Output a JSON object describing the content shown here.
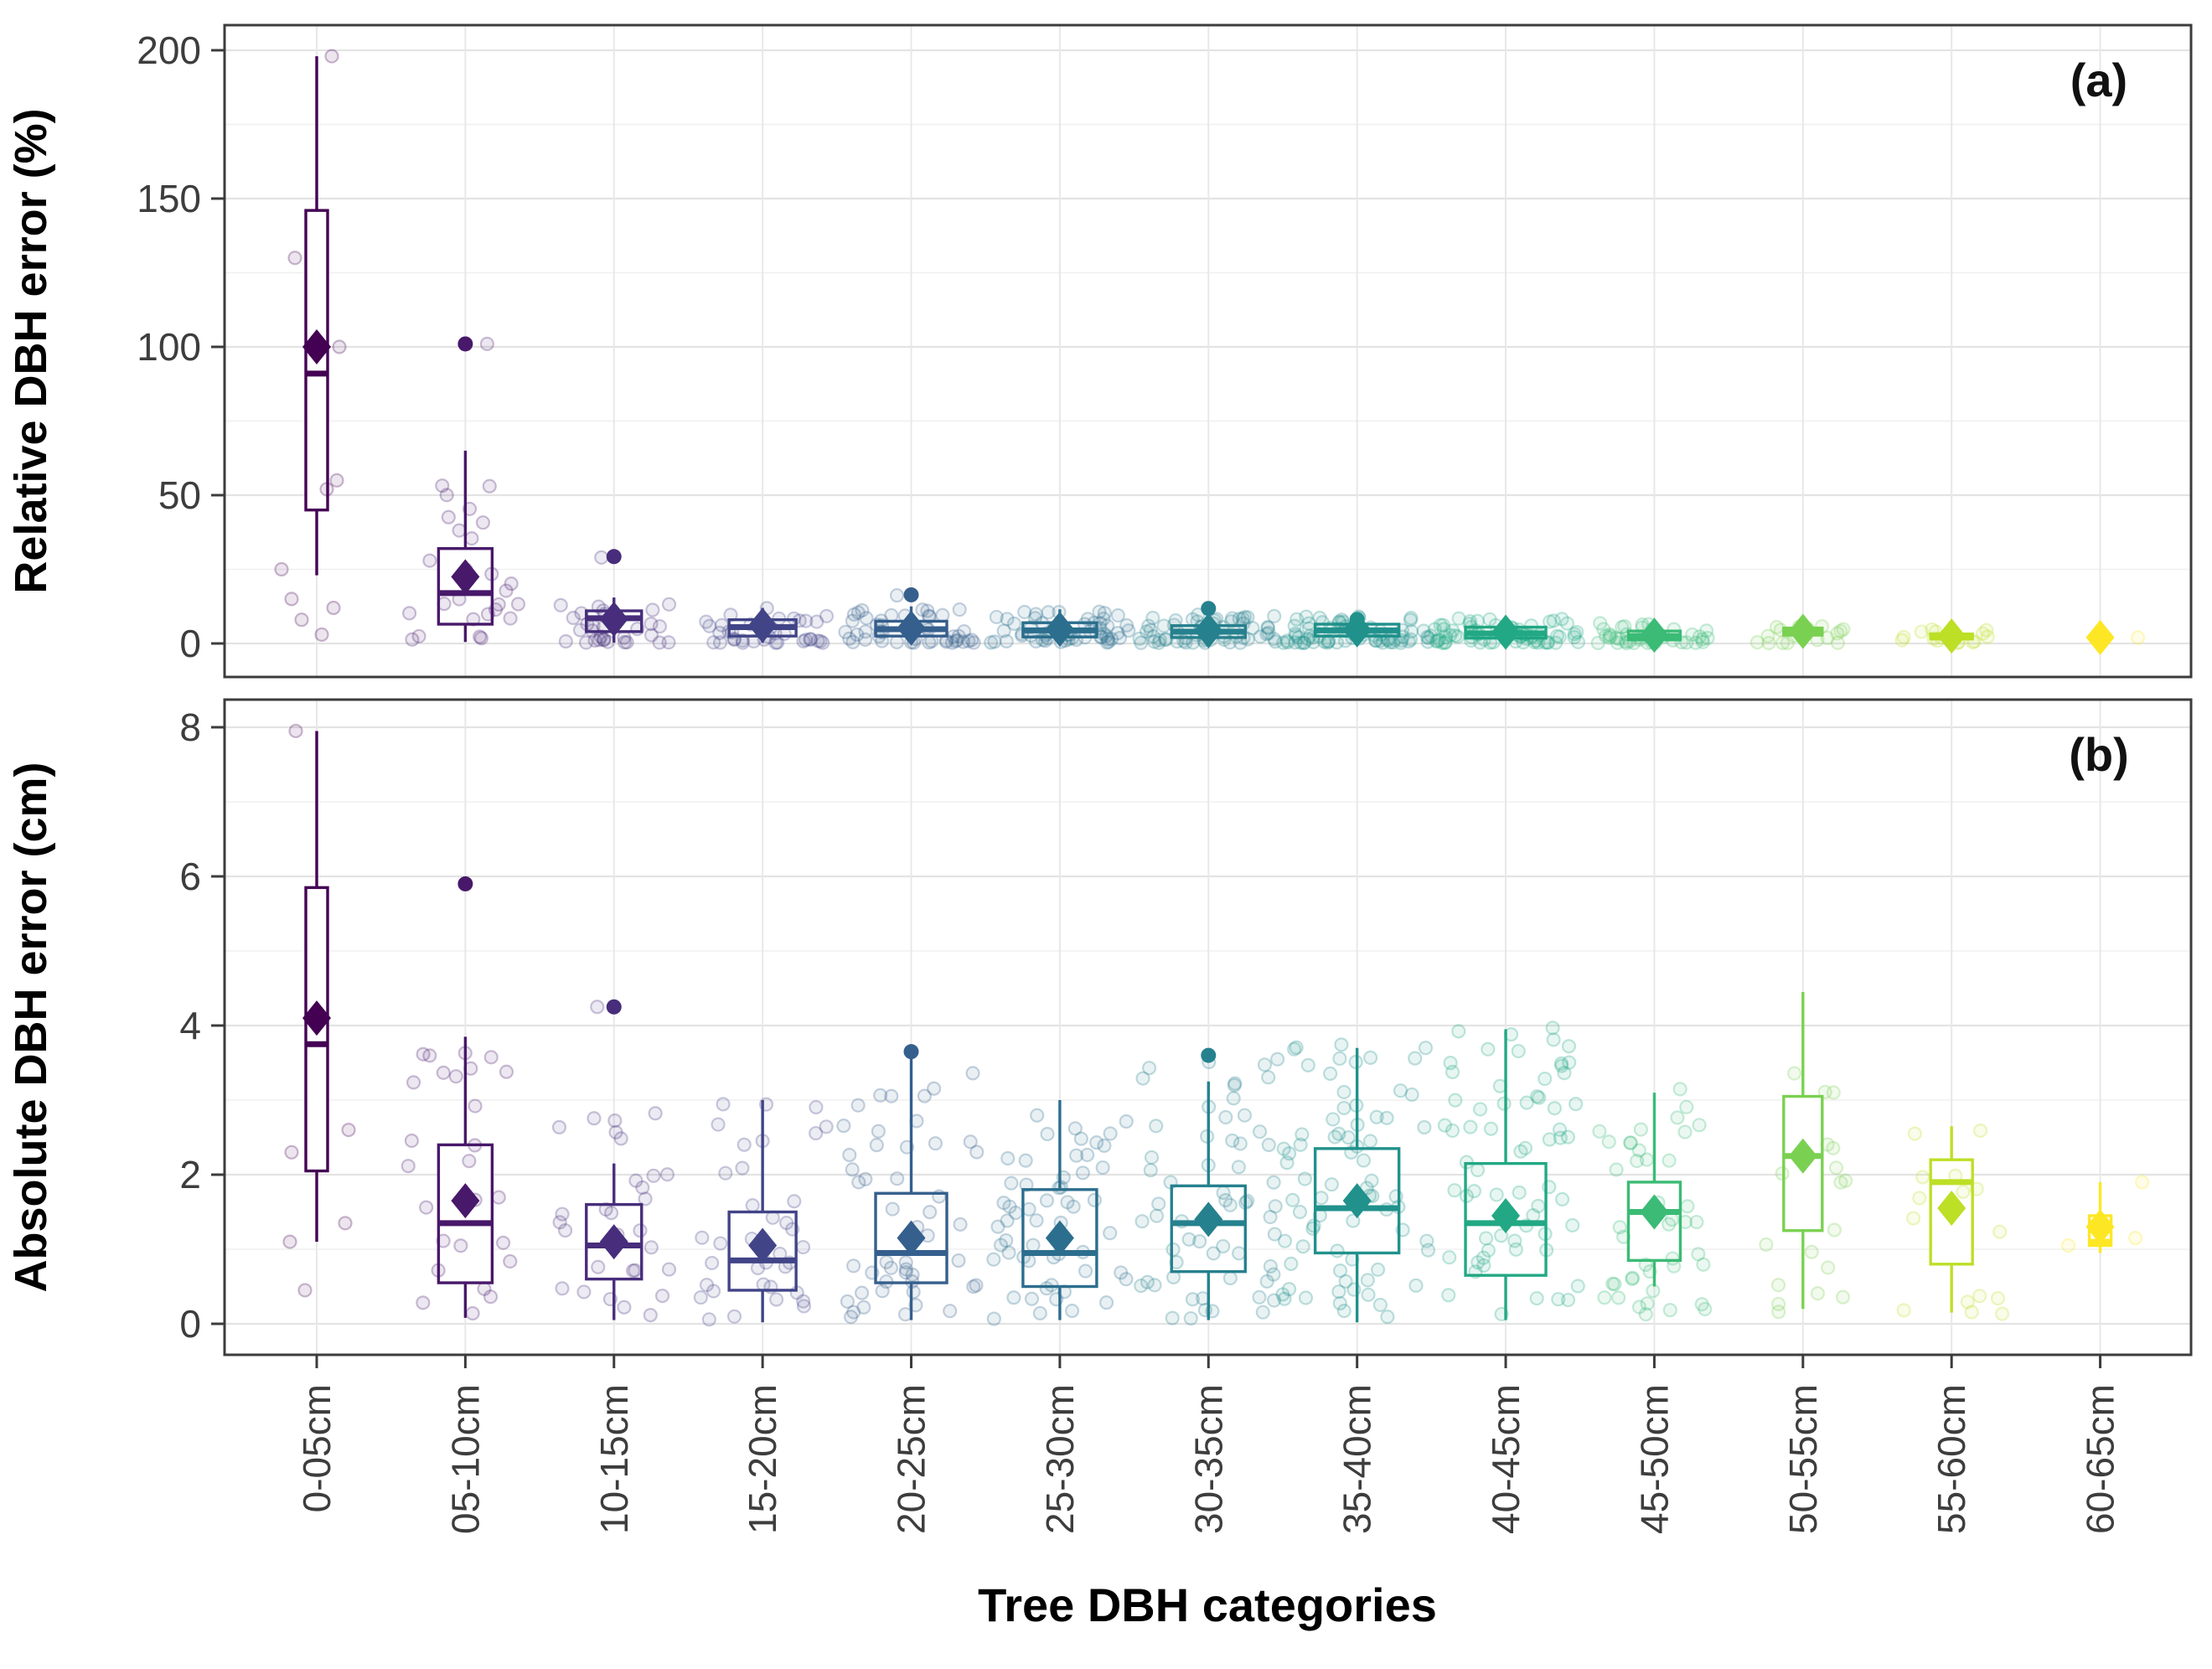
{
  "xlabel": "Tree DBH categories",
  "categories": [
    "0-05cm",
    "05-10cm",
    "10-15cm",
    "15-20cm",
    "20-25cm",
    "25-30cm",
    "30-35cm",
    "35-40cm",
    "40-45cm",
    "45-50cm",
    "50-55cm",
    "55-60cm",
    "60-65cm"
  ],
  "palette": [
    "#440154",
    "#48186a",
    "#472d7b",
    "#414487",
    "#355f8d",
    "#2c6e8e",
    "#26818e",
    "#21918c",
    "#22a884",
    "#3bbb75",
    "#7ad151",
    "#bddf26",
    "#fde725"
  ],
  "box_widths": [
    26,
    64,
    66,
    80,
    85,
    88,
    88,
    100,
    96,
    62,
    46,
    50,
    26
  ],
  "jitter_n": [
    0,
    26,
    30,
    36,
    48,
    55,
    60,
    72,
    65,
    42,
    18,
    15,
    0
  ],
  "chart_data": [
    {
      "type": "boxplot",
      "panel_label": "(a)",
      "ylabel": "Relative DBH error (%)",
      "ylim": [
        0,
        200
      ],
      "yticks": [
        0,
        50,
        100,
        150,
        200
      ],
      "yticks_minor": [
        25,
        75,
        125,
        175
      ],
      "grid": "major+minor",
      "boxes": [
        {
          "category": "0-05cm",
          "whisker_low": 23,
          "q1": 45,
          "median": 91,
          "q3": 146,
          "whisker_high": 198,
          "mean": 100,
          "jitter_max": 0,
          "outliers": [],
          "light_points": [
            [
              18,
              198
            ],
            [
              -26,
              130
            ],
            [
              27,
              100
            ],
            [
              -42,
              25
            ],
            [
              12,
              52
            ],
            [
              24,
              55
            ],
            [
              -18,
              8
            ],
            [
              6,
              3
            ],
            [
              -30,
              15
            ],
            [
              20,
              12
            ]
          ]
        },
        {
          "category": "05-10cm",
          "whisker_low": 0.5,
          "q1": 6.5,
          "median": 17,
          "q3": 32,
          "whisker_high": 65,
          "mean": 22.5,
          "jitter_max": 56,
          "outliers": [
            101
          ],
          "light_points": [
            [
              26,
              101
            ]
          ]
        },
        {
          "category": "10-15cm",
          "whisker_low": 0.3,
          "q1": 4,
          "median": 8.5,
          "q3": 11,
          "whisker_high": 15.5,
          "mean": 8.2,
          "jitter_max": 14,
          "outliers": [
            29.3
          ],
          "light_points": [
            [
              -15,
              29
            ]
          ]
        },
        {
          "category": "15-20cm",
          "whisker_low": 0.2,
          "q1": 2.5,
          "median": 5.5,
          "q3": 8,
          "whisker_high": 12,
          "mean": 6.1,
          "jitter_max": 12,
          "outliers": [],
          "light_points": []
        },
        {
          "category": "20-25cm",
          "whisker_low": 0.1,
          "q1": 2.5,
          "median": 4.8,
          "q3": 7.5,
          "whisker_high": 12.5,
          "mean": 5.2,
          "jitter_max": 12,
          "outliers": [
            16.4
          ],
          "light_points": [
            [
              -17,
              16.2
            ]
          ]
        },
        {
          "category": "25-30cm",
          "whisker_low": 0.1,
          "q1": 2.2,
          "median": 4.4,
          "q3": 7,
          "whisker_high": 11.5,
          "mean": 4.8,
          "jitter_max": 11,
          "outliers": [],
          "light_points": []
        },
        {
          "category": "30-35cm",
          "whisker_low": 0.2,
          "q1": 2,
          "median": 4,
          "q3": 6,
          "whisker_high": 9,
          "mean": 4.3,
          "jitter_max": 10,
          "outliers": [
            11.8
          ],
          "light_points": []
        },
        {
          "category": "35-40cm",
          "whisker_low": 0.3,
          "q1": 2.5,
          "median": 4.4,
          "q3": 6.5,
          "whisker_high": 8,
          "mean": 4.6,
          "jitter_max": 9,
          "outliers": [
            8.1
          ],
          "light_points": []
        },
        {
          "category": "40-45cm",
          "whisker_low": 0.1,
          "q1": 1.8,
          "median": 3.4,
          "q3": 5.5,
          "whisker_high": 8,
          "mean": 3.8,
          "jitter_max": 8.5,
          "outliers": [],
          "light_points": []
        },
        {
          "category": "45-50cm",
          "whisker_low": 0.1,
          "q1": 1.2,
          "median": 2.5,
          "q3": 4.2,
          "whisker_high": 6.5,
          "mean": 2.8,
          "jitter_max": 7,
          "outliers": [],
          "light_points": []
        },
        {
          "category": "50-55cm",
          "whisker_low": 0.5,
          "q1": 2.8,
          "median": 3.9,
          "q3": 5.2,
          "whisker_high": 6.5,
          "mean": 4.1,
          "jitter_max": 6.5,
          "outliers": [],
          "light_points": []
        },
        {
          "category": "55-60cm",
          "whisker_low": 0.2,
          "q1": 1.5,
          "median": 2.3,
          "q3": 3.2,
          "whisker_high": 4.5,
          "mean": 2.5,
          "jitter_max": 5,
          "outliers": [],
          "light_points": []
        },
        {
          "category": "60-65cm",
          "whisker_low": 1.85,
          "q1": 1.95,
          "median": 2.0,
          "q3": 2.1,
          "whisker_high": 2.2,
          "mean": 2.0,
          "jitter_max": 0,
          "outliers": [],
          "light_points": [
            [
              45,
              2.0
            ]
          ]
        }
      ]
    },
    {
      "type": "boxplot",
      "panel_label": "(b)",
      "ylabel": "Absolute DBH error (cm)",
      "ylim": [
        0,
        8
      ],
      "yticks": [
        0,
        2,
        4,
        6,
        8
      ],
      "yticks_minor": [
        1,
        3,
        5,
        7
      ],
      "grid": "major+minor",
      "boxes": [
        {
          "category": "0-05cm",
          "whisker_low": 1.1,
          "q1": 2.05,
          "median": 3.75,
          "q3": 5.85,
          "whisker_high": 7.95,
          "mean": 4.1,
          "jitter_max": 0,
          "outliers": [],
          "light_points": [
            [
              -25,
              7.95
            ],
            [
              -30,
              2.3
            ],
            [
              -32,
              1.1
            ],
            [
              38,
              2.6
            ],
            [
              34,
              1.35
            ],
            [
              -14,
              0.45
            ]
          ]
        },
        {
          "category": "05-10cm",
          "whisker_low": 0.08,
          "q1": 0.55,
          "median": 1.35,
          "q3": 2.4,
          "whisker_high": 3.85,
          "mean": 1.65,
          "jitter_max": 3.6,
          "outliers": [
            5.9
          ],
          "light_points": []
        },
        {
          "category": "10-15cm",
          "whisker_low": 0.05,
          "q1": 0.6,
          "median": 1.05,
          "q3": 1.6,
          "whisker_high": 2.15,
          "mean": 1.1,
          "jitter_max": 2.9,
          "outliers": [
            4.25
          ],
          "light_points": [
            [
              -20,
              4.25
            ]
          ]
        },
        {
          "category": "15-20cm",
          "whisker_low": 0.02,
          "q1": 0.45,
          "median": 0.85,
          "q3": 1.5,
          "whisker_high": 3.0,
          "mean": 1.05,
          "jitter_max": 2.9,
          "outliers": [],
          "light_points": []
        },
        {
          "category": "20-25cm",
          "whisker_low": 0.05,
          "q1": 0.55,
          "median": 0.95,
          "q3": 1.75,
          "whisker_high": 3.6,
          "mean": 1.15,
          "jitter_max": 3.3,
          "outliers": [
            3.65
          ],
          "light_points": []
        },
        {
          "category": "25-30cm",
          "whisker_low": 0.05,
          "q1": 0.5,
          "median": 0.95,
          "q3": 1.8,
          "whisker_high": 3.0,
          "mean": 1.15,
          "jitter_max": 3.0,
          "outliers": [],
          "light_points": []
        },
        {
          "category": "30-35cm",
          "whisker_low": 0.05,
          "q1": 0.7,
          "median": 1.35,
          "q3": 1.85,
          "whisker_high": 3.25,
          "mean": 1.4,
          "jitter_max": 3.5,
          "outliers": [
            3.6
          ],
          "light_points": []
        },
        {
          "category": "35-40cm",
          "whisker_low": 0.02,
          "q1": 0.95,
          "median": 1.55,
          "q3": 2.35,
          "whisker_high": 3.7,
          "mean": 1.65,
          "jitter_max": 3.7,
          "outliers": [],
          "light_points": []
        },
        {
          "category": "40-45cm",
          "whisker_low": 0.05,
          "q1": 0.65,
          "median": 1.35,
          "q3": 2.15,
          "whisker_high": 3.95,
          "mean": 1.45,
          "jitter_max": 3.9,
          "outliers": [],
          "light_points": []
        },
        {
          "category": "45-50cm",
          "whisker_low": 0.5,
          "q1": 0.85,
          "median": 1.5,
          "q3": 1.9,
          "whisker_high": 3.1,
          "mean": 1.5,
          "jitter_max": 3.2,
          "outliers": [],
          "light_points": []
        },
        {
          "category": "50-55cm",
          "whisker_low": 0.2,
          "q1": 1.25,
          "median": 2.25,
          "q3": 3.05,
          "whisker_high": 4.45,
          "mean": 2.25,
          "jitter_max": 4.4,
          "outliers": [],
          "light_points": []
        },
        {
          "category": "55-60cm",
          "whisker_low": 0.15,
          "q1": 0.8,
          "median": 1.9,
          "q3": 2.2,
          "whisker_high": 2.65,
          "mean": 1.55,
          "jitter_max": 2.9,
          "outliers": [],
          "light_points": []
        },
        {
          "category": "60-65cm",
          "whisker_low": 0.95,
          "q1": 1.05,
          "median": 1.1,
          "q3": 1.45,
          "whisker_high": 1.9,
          "mean": 1.3,
          "jitter_max": 0,
          "outliers": [],
          "light_points": [
            [
              -38,
              1.05
            ],
            [
              42,
              1.15
            ],
            [
              50,
              1.9
            ]
          ]
        }
      ]
    }
  ]
}
